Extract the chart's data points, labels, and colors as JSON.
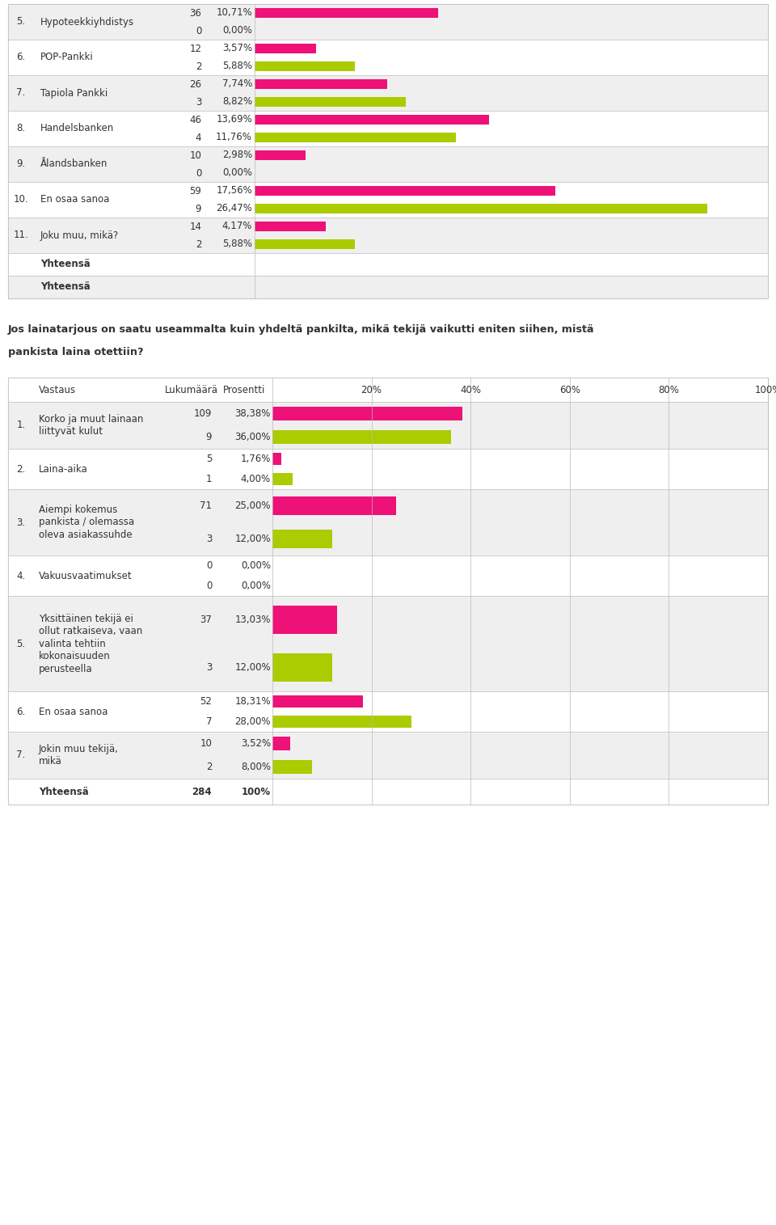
{
  "top_section": {
    "rows": [
      {
        "num": "5.",
        "label": "Hypoteekkiyhdistys",
        "pink_count": 36,
        "pink_pct": "10,71%",
        "pink_val": 10.71,
        "green_count": 0,
        "green_pct": "0,00%",
        "green_val": 0.0
      },
      {
        "num": "6.",
        "label": "POP-Pankki",
        "pink_count": 12,
        "pink_pct": "3,57%",
        "pink_val": 3.57,
        "green_count": 2,
        "green_pct": "5,88%",
        "green_val": 5.88
      },
      {
        "num": "7.",
        "label": "Tapiola Pankki",
        "pink_count": 26,
        "pink_pct": "7,74%",
        "pink_val": 7.74,
        "green_count": 3,
        "green_pct": "8,82%",
        "green_val": 8.82
      },
      {
        "num": "8.",
        "label": "Handelsbanken",
        "pink_count": 46,
        "pink_pct": "13,69%",
        "pink_val": 13.69,
        "green_count": 4,
        "green_pct": "11,76%",
        "green_val": 11.76
      },
      {
        "num": "9.",
        "label": "Ålandsbanken",
        "pink_count": 10,
        "pink_pct": "2,98%",
        "pink_val": 2.98,
        "green_count": 0,
        "green_pct": "0,00%",
        "green_val": 0.0
      },
      {
        "num": "10.",
        "label": "En osaa sanoa",
        "pink_count": 59,
        "pink_pct": "17,56%",
        "pink_val": 17.56,
        "green_count": 9,
        "green_pct": "26,47%",
        "green_val": 26.47
      },
      {
        "num": "11.",
        "label": "Joku muu, mikä?",
        "pink_count": 14,
        "pink_pct": "4,17%",
        "pink_val": 4.17,
        "green_count": 2,
        "green_pct": "5,88%",
        "green_val": 5.88
      },
      {
        "num": "",
        "label": "Yhteensä",
        "is_summary": true
      },
      {
        "num": "",
        "label": "Yhteensä",
        "is_summary": true
      }
    ],
    "x_max": 30
  },
  "question_line1": "Jos lainatarjous on saatu useammalta kuin yhdeltä pankilta, mikä tekijä vaikutti eniten siihen, mistä",
  "question_line2": "pankista laina otettiin?",
  "bottom_section": {
    "header": {
      "col1": "Vastaus",
      "col2": "Lukumäärä",
      "col3": "Prosentti"
    },
    "rows": [
      {
        "num": "1.",
        "label": "Korko ja muut lainaan\nliittyvät kulut",
        "pink_count": 109,
        "pink_pct": "38,38%",
        "pink_val": 38.38,
        "green_count": 9,
        "green_pct": "36,00%",
        "green_val": 36.0
      },
      {
        "num": "2.",
        "label": "Laina-aika",
        "pink_count": 5,
        "pink_pct": "1,76%",
        "pink_val": 1.76,
        "green_count": 1,
        "green_pct": "4,00%",
        "green_val": 4.0
      },
      {
        "num": "3.",
        "label": "Aiempi kokemus\npankista / olemassa\noleva asiakassuhde",
        "pink_count": 71,
        "pink_pct": "25,00%",
        "pink_val": 25.0,
        "green_count": 3,
        "green_pct": "12,00%",
        "green_val": 12.0
      },
      {
        "num": "4.",
        "label": "Vakuusvaatimukset",
        "pink_count": 0,
        "pink_pct": "0,00%",
        "pink_val": 0.0,
        "green_count": 0,
        "green_pct": "0,00%",
        "green_val": 0.0
      },
      {
        "num": "5.",
        "label": "Yksittäinen tekijä ei\nollut ratkaiseva, vaan\nvalinta tehtiin\nkokonaisuuden\nperusteella",
        "pink_count": 37,
        "pink_pct": "13,03%",
        "pink_val": 13.03,
        "green_count": 3,
        "green_pct": "12,00%",
        "green_val": 12.0
      },
      {
        "num": "6.",
        "label": "En osaa sanoa",
        "pink_count": 52,
        "pink_pct": "18,31%",
        "pink_val": 18.31,
        "green_count": 7,
        "green_pct": "28,00%",
        "green_val": 28.0
      },
      {
        "num": "7.",
        "label": "Jokin muu tekijä,\nmikä",
        "pink_count": 10,
        "pink_pct": "3,52%",
        "pink_val": 3.52,
        "green_count": 2,
        "green_pct": "8,00%",
        "green_val": 8.0
      }
    ],
    "total_label": "Yhteensä",
    "total_count": "284",
    "total_pct": "100%",
    "x_max": 100,
    "axis_ticks": [
      20,
      40,
      60,
      80,
      100
    ]
  },
  "pink_color": "#EE1177",
  "green_color": "#AACC00",
  "bg_even": "#EFEFEF",
  "bg_odd": "#FFFFFF",
  "border_color": "#BBBBBB",
  "text_color": "#333333",
  "fig_w": 9.6,
  "fig_h": 15.15
}
